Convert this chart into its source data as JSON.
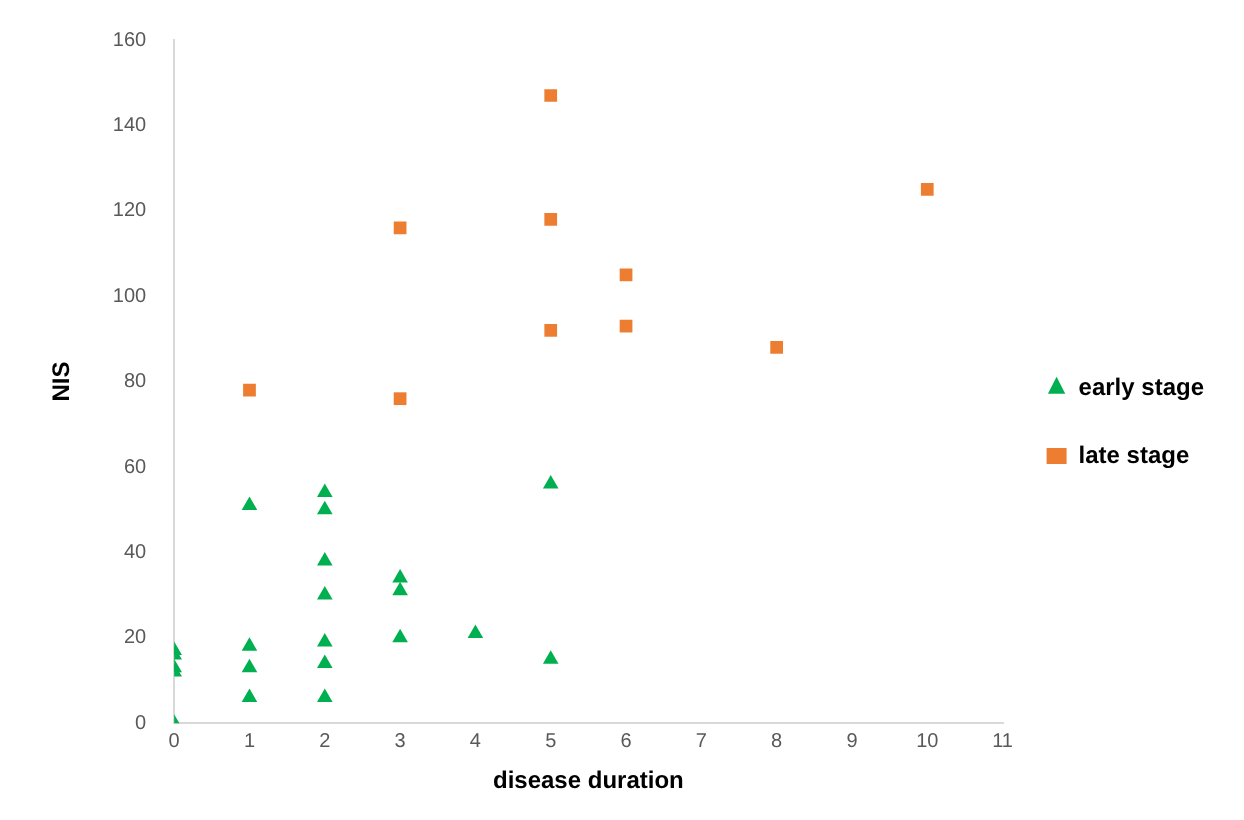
{
  "chart_data": {
    "type": "scatter",
    "xlabel": "disease duration",
    "ylabel": "NIS",
    "xlim": [
      0,
      11
    ],
    "xticks": [
      0,
      1,
      2,
      3,
      4,
      5,
      6,
      7,
      8,
      9,
      10,
      11
    ],
    "ylim": [
      0,
      160
    ],
    "yticks": [
      0,
      20,
      40,
      60,
      80,
      100,
      120,
      140,
      160
    ],
    "grid": false,
    "legend": "right",
    "series": [
      {
        "name": "early stage",
        "color": "#00b050",
        "marker": "triangle",
        "x": [
          0,
          0,
          0,
          0,
          0,
          1,
          1,
          1,
          1,
          2,
          2,
          2,
          2,
          2,
          2,
          2,
          3,
          3,
          3,
          4,
          5,
          5
        ],
        "values": [
          0,
          12,
          13,
          16,
          17,
          6,
          13,
          18,
          51,
          6,
          14,
          19,
          30,
          38,
          50,
          54,
          20,
          31,
          34,
          21,
          15,
          56
        ]
      },
      {
        "name": "late stage",
        "color": "#ed7d31",
        "marker": "square",
        "x": [
          1,
          3,
          3,
          5,
          5,
          5,
          6,
          6,
          8,
          10
        ],
        "values": [
          78,
          76,
          116,
          92,
          118,
          147,
          93,
          105,
          88,
          125
        ]
      }
    ]
  }
}
